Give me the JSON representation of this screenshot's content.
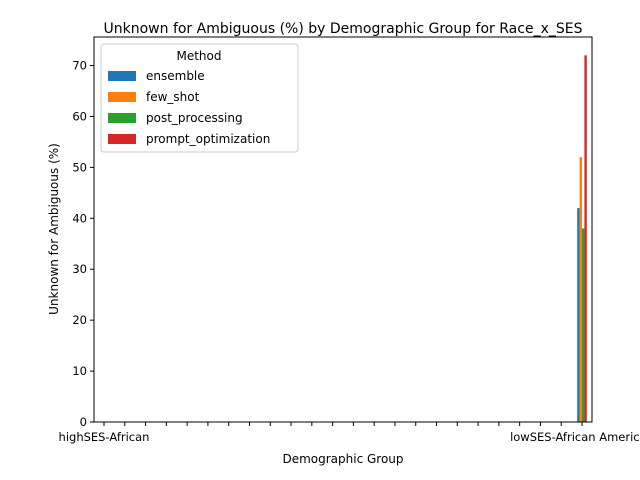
{
  "chart_data": {
    "type": "bar",
    "title": "Unknown for Ambiguous (%) by Demographic Group for Race_x_SES",
    "xlabel": "Demographic Group",
    "ylabel": "Unknown for Ambiguous (%)",
    "ylim": [
      0,
      75.6
    ],
    "yticks": [
      0,
      10,
      20,
      30,
      40,
      50,
      60,
      70
    ],
    "grid": false,
    "legend": {
      "title": "Method",
      "placement": "top-left"
    },
    "categories": [
      "highSES-African",
      "",
      "",
      "",
      "",
      "",
      "",
      "",
      "",
      "",
      "",
      "",
      "",
      "",
      "",
      "",
      "",
      "",
      "",
      "",
      "",
      "",
      "",
      "lowSES-African American"
    ],
    "category_labels_note_free": true,
    "series": [
      {
        "name": "ensemble",
        "color": "#1f77b4",
        "values": [
          null,
          null,
          null,
          null,
          null,
          null,
          null,
          null,
          null,
          null,
          null,
          null,
          null,
          null,
          null,
          null,
          null,
          null,
          null,
          null,
          null,
          null,
          null,
          42
        ]
      },
      {
        "name": "few_shot",
        "color": "#ff7f0e",
        "values": [
          null,
          null,
          null,
          null,
          null,
          null,
          null,
          null,
          null,
          null,
          null,
          null,
          null,
          null,
          null,
          null,
          null,
          null,
          null,
          null,
          null,
          null,
          null,
          52
        ]
      },
      {
        "name": "post_processing",
        "color": "#2ca02c",
        "values": [
          null,
          null,
          null,
          null,
          null,
          null,
          null,
          null,
          null,
          null,
          null,
          null,
          null,
          null,
          null,
          null,
          null,
          null,
          null,
          null,
          null,
          null,
          null,
          38
        ]
      },
      {
        "name": "prompt_optimization",
        "color": "#d62728",
        "values": [
          null,
          null,
          null,
          null,
          null,
          null,
          null,
          null,
          null,
          null,
          null,
          null,
          null,
          null,
          null,
          null,
          null,
          null,
          null,
          null,
          null,
          null,
          null,
          72
        ]
      }
    ]
  }
}
